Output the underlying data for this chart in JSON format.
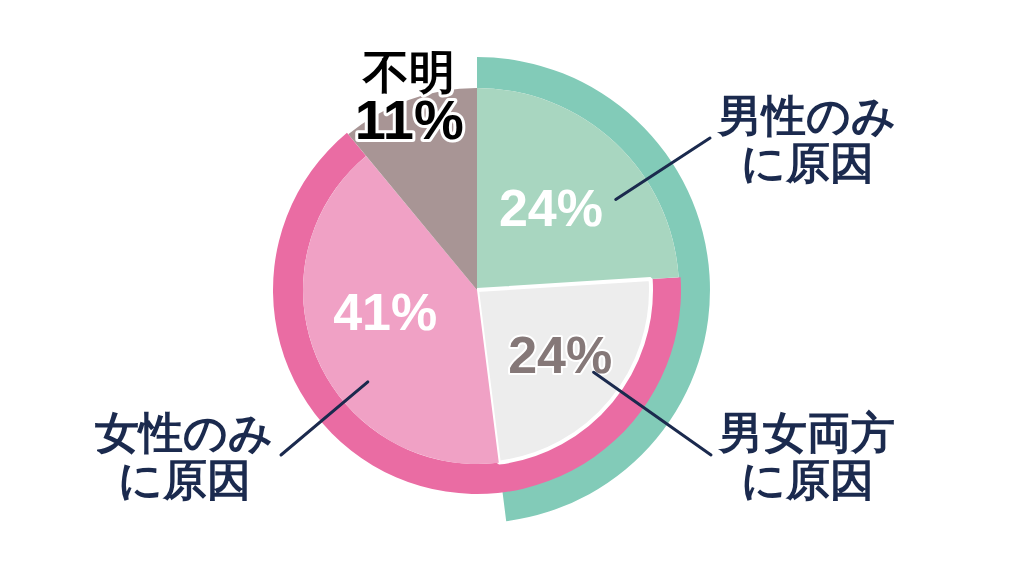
{
  "chart_data": {
    "type": "pie",
    "categories": [
      "男性のみに原因",
      "男女両方に原因",
      "女性のみに原因",
      "不明"
    ],
    "values": [
      24,
      24,
      41,
      11
    ],
    "colors": [
      "#a8d6c0",
      "#ededed",
      "#f0a1c5",
      "#a89595"
    ],
    "value_labels": [
      "24%",
      "24%",
      "41%",
      "11%"
    ]
  }
}
